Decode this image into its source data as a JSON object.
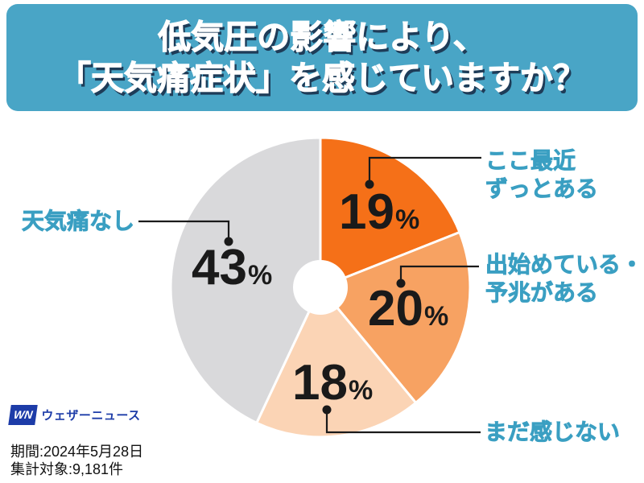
{
  "header": {
    "title_line1": "低気圧の影響により、",
    "title_line2": "「天気痛症状」を感じていますか？",
    "bg_color": "#49a5c6",
    "text_color": "#ffffff",
    "shadow_color": "#1e3c58"
  },
  "chart_data": {
    "type": "pie",
    "title": "低気圧の影響により、「天気痛症状」を感じていますか？",
    "donut_hole": true,
    "start_angle_deg": 0,
    "direction": "clockwise",
    "percent_suffix": "%",
    "label_color": "#3a9fc2",
    "value_color": "#1a1a1a",
    "slices": [
      {
        "label": "ここ最近\nずっとある",
        "value": 19,
        "pct": "19",
        "color": "#f57018"
      },
      {
        "label": "出始めている・\n予兆がある",
        "value": 20,
        "pct": "20",
        "color": "#f7a262"
      },
      {
        "label": "まだ感じない",
        "value": 18,
        "pct": "18",
        "color": "#fbd4b5"
      },
      {
        "label": "天気痛なし",
        "value": 43,
        "pct": "43",
        "color": "#d9d9db"
      }
    ]
  },
  "footer": {
    "logo_badge": "WN",
    "logo_text": "ウェザーニュース",
    "logo_color": "#1d3ca8",
    "period": "期間:2024年5月28日",
    "sample": "集計対象:9,181件"
  }
}
